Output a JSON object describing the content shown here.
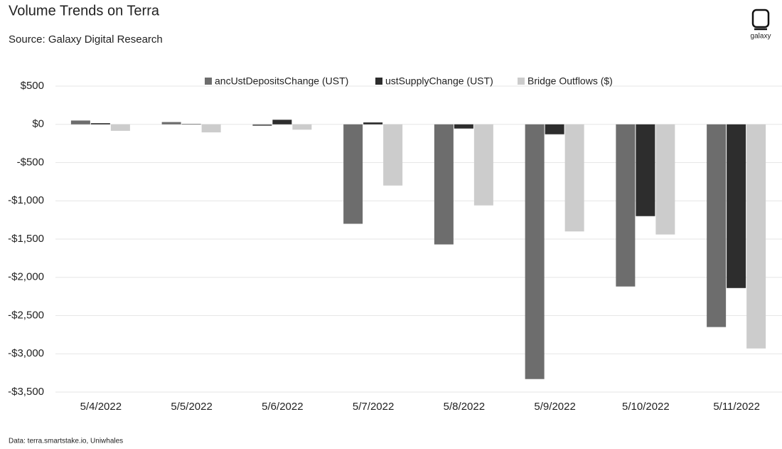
{
  "chart_data": {
    "type": "bar",
    "title": "Volume Trends on Terra",
    "subtitle": "Source: Galaxy Digital Research",
    "footnote": "Data: terra.smartstake.io, Uniwhales",
    "logo": "galaxy",
    "categories": [
      "5/4/2022",
      "5/5/2022",
      "5/6/2022",
      "5/7/2022",
      "5/8/2022",
      "5/9/2022",
      "5/10/2022",
      "5/11/2022"
    ],
    "series": [
      {
        "name": "ancUstDepositsChange (UST)",
        "color": "#6d6d6d",
        "values": [
          50,
          30,
          -20,
          -1300,
          -1570,
          -3330,
          -2120,
          -2650
        ]
      },
      {
        "name": "ustSupplyChange (UST)",
        "color": "#2d2d2d",
        "values": [
          15,
          5,
          60,
          25,
          -55,
          -130,
          -1200,
          -2140
        ]
      },
      {
        "name": "Bridge Outflows ($)",
        "color": "#cccccc",
        "values": [
          -85,
          -105,
          -70,
          -800,
          -1060,
          -1400,
          -1440,
          -2930
        ]
      }
    ],
    "ylim": [
      -3500,
      500
    ],
    "yticks": [
      {
        "value": 500,
        "label": "$500"
      },
      {
        "value": 0,
        "label": "$0"
      },
      {
        "value": -500,
        "label": "-$500"
      },
      {
        "value": -1000,
        "label": "-$1,000"
      },
      {
        "value": -1500,
        "label": "-$1,500"
      },
      {
        "value": -2000,
        "label": "-$2,000"
      },
      {
        "value": -2500,
        "label": "-$2,500"
      },
      {
        "value": -3000,
        "label": "-$3,000"
      },
      {
        "value": -3500,
        "label": "-$3,500"
      }
    ],
    "grid": true,
    "legend": "top"
  }
}
